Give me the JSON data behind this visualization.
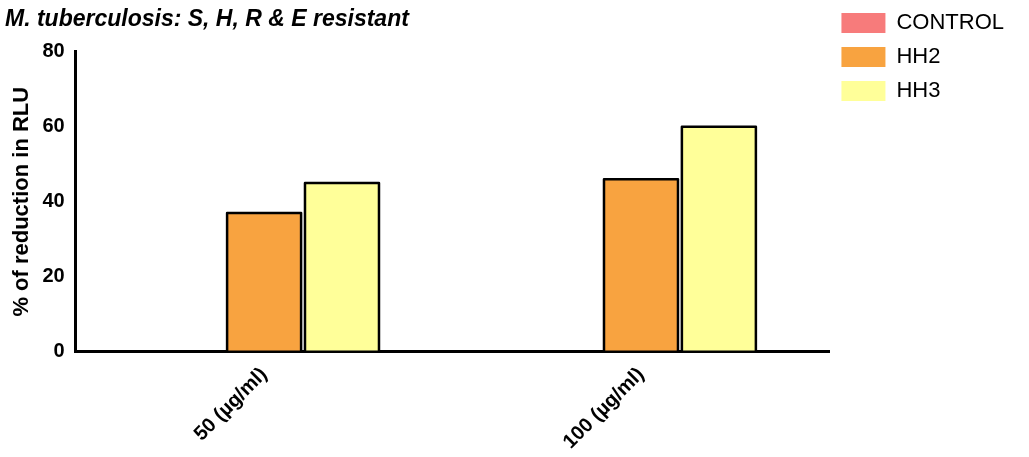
{
  "chart_data": {
    "type": "bar",
    "title": "M. tuberculosis: S, H, R & E resistant",
    "ylabel": "% of reduction in RLU",
    "categories": [
      "50 (µg/ml)",
      "100 (µg/ml)"
    ],
    "series": [
      {
        "name": "CONTROL",
        "color": "#f77b7b",
        "values": [
          0,
          0
        ]
      },
      {
        "name": "HH2",
        "color": "#f8a340",
        "values": [
          37,
          46
        ]
      },
      {
        "name": "HH3",
        "color": "#ffff99",
        "values": [
          45,
          60
        ]
      }
    ],
    "ylim": [
      0,
      80
    ],
    "yticks": [
      0,
      20,
      40,
      60,
      80
    ],
    "grid": false,
    "legend": "right"
  }
}
